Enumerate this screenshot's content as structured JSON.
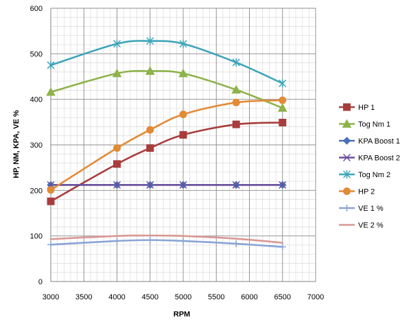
{
  "chart_data": {
    "type": "line",
    "title": "",
    "xlabel": "RPM",
    "ylabel": "HP, NM, KPA, VE %",
    "xlim": [
      3000,
      7000
    ],
    "ylim": [
      0,
      600
    ],
    "x_ticks": [
      "3000",
      "3500",
      "4000",
      "4500",
      "5000",
      "5500",
      "6000",
      "6500",
      "7000"
    ],
    "y_ticks": [
      "0",
      "100",
      "200",
      "300",
      "400",
      "500",
      "600"
    ],
    "x": [
      3000,
      4000,
      4500,
      5000,
      5800,
      6500
    ],
    "grid": true,
    "minor_grid": true,
    "legend_position": "right",
    "series": [
      {
        "name": "HP 1",
        "values": [
          176,
          258,
          293,
          322,
          345,
          349
        ],
        "color": "#a83c3c",
        "marker": "square"
      },
      {
        "name": "Tog Nm 1",
        "values": [
          416,
          457,
          462,
          457,
          421,
          381
        ],
        "color": "#8eb34a",
        "marker": "triangle"
      },
      {
        "name": "KPA Boost 1",
        "values": [
          212,
          212,
          212,
          212,
          212,
          212
        ],
        "color": "#4a6fb8",
        "marker": "diamond"
      },
      {
        "name": "KPA Boost 2",
        "values": [
          212,
          212,
          212,
          212,
          212,
          212
        ],
        "color": "#6b4c9a",
        "marker": "x"
      },
      {
        "name": "Tog Nm 2",
        "values": [
          475,
          522,
          528,
          522,
          481,
          435
        ],
        "color": "#3ea5b9",
        "marker": "star"
      },
      {
        "name": "HP 2",
        "values": [
          201,
          293,
          333,
          367,
          393,
          398
        ],
        "color": "#e38a35",
        "marker": "circle"
      },
      {
        "name": "VE 1 %",
        "values": [
          81,
          89,
          91,
          89,
          83,
          76
        ],
        "color": "#8aa4d4",
        "marker": "plus"
      },
      {
        "name": "VE 2 %",
        "values": [
          93,
          100,
          101,
          100,
          94,
          85
        ],
        "color": "#d99894",
        "marker": "none"
      }
    ]
  }
}
